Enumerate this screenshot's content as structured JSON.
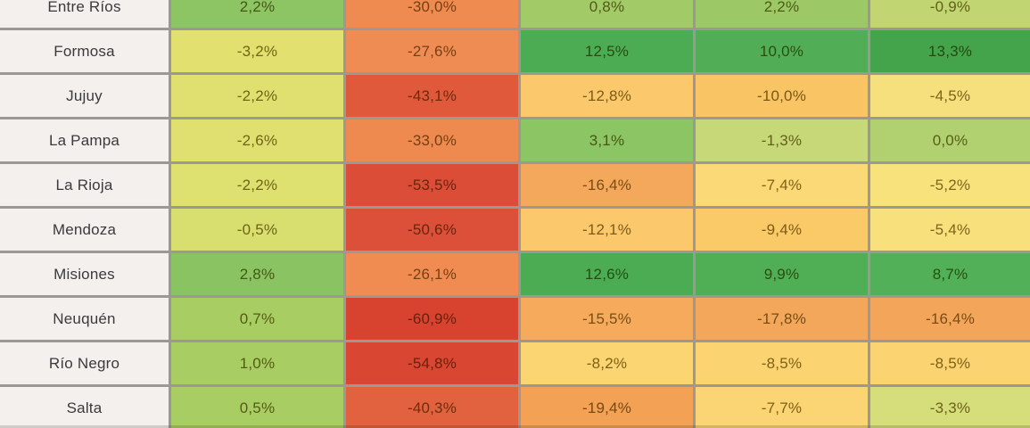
{
  "chart_data": {
    "type": "heatmap",
    "title": "",
    "categories": [
      "Entre Ríos",
      "Formosa",
      "Jujuy",
      "La Pampa",
      "La Rioja",
      "Mendoza",
      "Misiones",
      "Neuquén",
      "Río Negro",
      "Salta"
    ],
    "columns_visible": false,
    "values": [
      [
        2.2,
        -30.0,
        0.8,
        2.2,
        -0.9
      ],
      [
        -3.2,
        -27.6,
        12.5,
        10.0,
        13.3
      ],
      [
        -2.2,
        -43.1,
        -12.8,
        -10.0,
        -4.5
      ],
      [
        -2.6,
        -33.0,
        3.1,
        -1.3,
        0.0
      ],
      [
        -2.2,
        -53.5,
        -16.4,
        -7.4,
        -5.2
      ],
      [
        -0.5,
        -50.6,
        -12.1,
        -9.4,
        -5.4
      ],
      [
        2.8,
        -26.1,
        12.6,
        9.9,
        8.7
      ],
      [
        0.7,
        -60.9,
        -15.5,
        -17.8,
        -16.4
      ],
      [
        1.0,
        -54.8,
        -8.2,
        -8.5,
        -8.5
      ],
      [
        0.5,
        -40.3,
        -19.4,
        -7.7,
        -3.3
      ]
    ],
    "unit": "%",
    "decimal_separator": ",",
    "color_scale": "red-yellow-green diverging (negative=red/orange, near zero=yellow-green, positive=green)"
  },
  "table": {
    "rows": [
      {
        "label": "Entre Ríos",
        "cells": [
          {
            "text": "2,2%",
            "bg": "#8dc464"
          },
          {
            "text": "-30,0%",
            "bg": "#ef8a50"
          },
          {
            "text": "0,8%",
            "bg": "#a2cb67"
          },
          {
            "text": "2,2%",
            "bg": "#9cc966"
          },
          {
            "text": "-0,9%",
            "bg": "#c2d573"
          }
        ]
      },
      {
        "label": "Formosa",
        "cells": [
          {
            "text": "-3,2%",
            "bg": "#e2e06f"
          },
          {
            "text": "-27,6%",
            "bg": "#ef8c53"
          },
          {
            "text": "12,5%",
            "bg": "#4bac53"
          },
          {
            "text": "10,0%",
            "bg": "#52ae56"
          },
          {
            "text": "13,3%",
            "bg": "#44a44c"
          }
        ]
      },
      {
        "label": "Jujuy",
        "cells": [
          {
            "text": "-2,2%",
            "bg": "#e0e070"
          },
          {
            "text": "-43,1%",
            "bg": "#e0593a"
          },
          {
            "text": "-12,8%",
            "bg": "#fbc96b"
          },
          {
            "text": "-10,0%",
            "bg": "#f8c464"
          },
          {
            "text": "-4,5%",
            "bg": "#f6df7d"
          }
        ]
      },
      {
        "label": "La Pampa",
        "cells": [
          {
            "text": "-2,6%",
            "bg": "#e0e070"
          },
          {
            "text": "-33,0%",
            "bg": "#ee8a4f"
          },
          {
            "text": "3,1%",
            "bg": "#8cc563"
          },
          {
            "text": "-1,3%",
            "bg": "#c6d878"
          },
          {
            "text": "0,0%",
            "bg": "#b1d171"
          }
        ]
      },
      {
        "label": "La Rioja",
        "cells": [
          {
            "text": "-2,2%",
            "bg": "#dee06f"
          },
          {
            "text": "-53,5%",
            "bg": "#dc4d38"
          },
          {
            "text": "-16,4%",
            "bg": "#f4a85c"
          },
          {
            "text": "-7,4%",
            "bg": "#fbd977"
          },
          {
            "text": "-5,2%",
            "bg": "#f8e27c"
          }
        ]
      },
      {
        "label": "Mendoza",
        "cells": [
          {
            "text": "-0,5%",
            "bg": "#d9df6f"
          },
          {
            "text": "-50,6%",
            "bg": "#dc4f38"
          },
          {
            "text": "-12,1%",
            "bg": "#fbc96b"
          },
          {
            "text": "-9,4%",
            "bg": "#f9ca67"
          },
          {
            "text": "-5,4%",
            "bg": "#f8e17c"
          }
        ]
      },
      {
        "label": "Misiones",
        "cells": [
          {
            "text": "2,8%",
            "bg": "#8ac462"
          },
          {
            "text": "-26,1%",
            "bg": "#f08c52"
          },
          {
            "text": "12,6%",
            "bg": "#4bac53"
          },
          {
            "text": "9,9%",
            "bg": "#50ae55"
          },
          {
            "text": "8,7%",
            "bg": "#52b058"
          }
        ]
      },
      {
        "label": "Neuquén",
        "cells": [
          {
            "text": "0,7%",
            "bg": "#a8cd62"
          },
          {
            "text": "-60,9%",
            "bg": "#d84330"
          },
          {
            "text": "-15,5%",
            "bg": "#f5ab5b"
          },
          {
            "text": "-17,8%",
            "bg": "#f3a75b"
          },
          {
            "text": "-16,4%",
            "bg": "#f3a65a"
          }
        ]
      },
      {
        "label": "Río Negro",
        "cells": [
          {
            "text": "1,0%",
            "bg": "#a8cd62"
          },
          {
            "text": "-54,8%",
            "bg": "#d94733"
          },
          {
            "text": "-8,2%",
            "bg": "#fbd572"
          },
          {
            "text": "-8,5%",
            "bg": "#fbd471"
          },
          {
            "text": "-8,5%",
            "bg": "#fbd471"
          }
        ]
      },
      {
        "label": "Salta",
        "cells": [
          {
            "text": "0,5%",
            "bg": "#a8cd62"
          },
          {
            "text": "-40,3%",
            "bg": "#e2613e"
          },
          {
            "text": "-19,4%",
            "bg": "#f2a155"
          },
          {
            "text": "-7,7%",
            "bg": "#fbd473"
          },
          {
            "text": "-3,3%",
            "bg": "#d6dd7b"
          }
        ]
      }
    ]
  },
  "colors": {
    "grid_line": "#9c9896",
    "row_header_bg": "#f4f0ee",
    "row_header_text": "#3a3a3a"
  }
}
